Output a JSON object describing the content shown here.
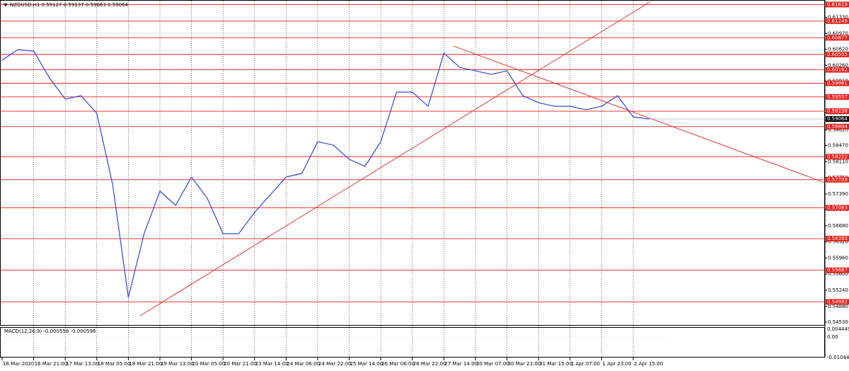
{
  "chart_data": {
    "type": "line",
    "title": "NZDUSD,H1  0.59127 0.59137 0.59063 0.59064",
    "categories": [
      "16 Mar 2020",
      null,
      "16 Mar 21:00",
      null,
      "17 Mar 13:00",
      null,
      "18 Mar 05:00",
      null,
      "18 Mar 21:00",
      null,
      "19 Mar 13:00",
      null,
      "20 Mar 05:00",
      null,
      "20 Mar 21:00",
      null,
      "23 Mar 14:00",
      null,
      "24 Mar 06:00",
      null,
      "24 Mar 22:00",
      null,
      "25 Mar 14:00",
      null,
      "26 Mar 06:00",
      null,
      "26 Mar 22:00",
      null,
      "27 Mar 14:00",
      null,
      "30 Mar 07:00",
      null,
      "30 Mar 23:00",
      null,
      "31 Mar 15:00",
      null,
      "1 Apr 07:00",
      null,
      "1 Apr 23:00",
      null,
      "2 Apr 15:00",
      null
    ],
    "values": [
      0.60375,
      0.60612,
      0.60581,
      0.5998,
      0.59506,
      0.59585,
      0.5919,
      0.57611,
      0.55083,
      0.56505,
      0.57453,
      0.57137,
      0.57769,
      0.57295,
      0.56505,
      0.56505,
      0.56979,
      0.57374,
      0.57769,
      0.57848,
      0.58558,
      0.58479,
      0.58163,
      0.58006,
      0.58558,
      0.59664,
      0.59664,
      0.59348,
      0.60533,
      0.60217,
      0.60138,
      0.60059,
      0.60138,
      0.59585,
      0.59427,
      0.59348,
      0.59348,
      0.59269,
      0.59348,
      0.59585,
      0.59111,
      0.59064
    ],
    "color": "#2f47d8",
    "ylim": [
      0.5445,
      0.6172
    ],
    "yticks": [
      {
        "value": 0.6133,
        "label": "0.61330"
      },
      {
        "value": 0.6097,
        "label": "0.60970"
      },
      {
        "value": 0.6062,
        "label": "0.60620"
      },
      {
        "value": 0.6026,
        "label": "0.60260"
      },
      {
        "value": 0.5991,
        "label": "0.59910"
      },
      {
        "value": 0.5955,
        "label": "0.59550"
      },
      {
        "value": 0.592,
        "label": "0.59200"
      },
      {
        "value": 0.5882,
        "label": "0.58820"
      },
      {
        "value": 0.5847,
        "label": "0.58470"
      },
      {
        "value": 0.5811,
        "label": "0.58110"
      },
      {
        "value": 0.5775,
        "label": "0.57750"
      },
      {
        "value": 0.5739,
        "label": "0.57390"
      },
      {
        "value": 0.5704,
        "label": "0.57040"
      },
      {
        "value": 0.5668,
        "label": "0.56680"
      },
      {
        "value": 0.5632,
        "label": "0.56320"
      },
      {
        "value": 0.5596,
        "label": "0.55960"
      },
      {
        "value": 0.556,
        "label": "0.55600"
      },
      {
        "value": 0.5524,
        "label": "0.55240"
      },
      {
        "value": 0.5488,
        "label": "0.54880"
      },
      {
        "value": 0.5453,
        "label": "0.54530"
      }
    ],
    "levels": [
      0.61619,
      0.61249,
      0.60877,
      0.60505,
      0.60162,
      0.59861,
      0.59557,
      0.59238,
      0.58894,
      0.58222,
      0.57709,
      0.57083,
      0.56393,
      0.55687,
      0.54982
    ],
    "level_color": "#e8201a",
    "last_price": 0.59064,
    "grid": true
  },
  "macd_panel": {
    "title": "MACD(12,26,9) -0.000558 -0.000596",
    "scale_labels": [
      "0.004449",
      "0.00",
      "-0.010448"
    ]
  }
}
